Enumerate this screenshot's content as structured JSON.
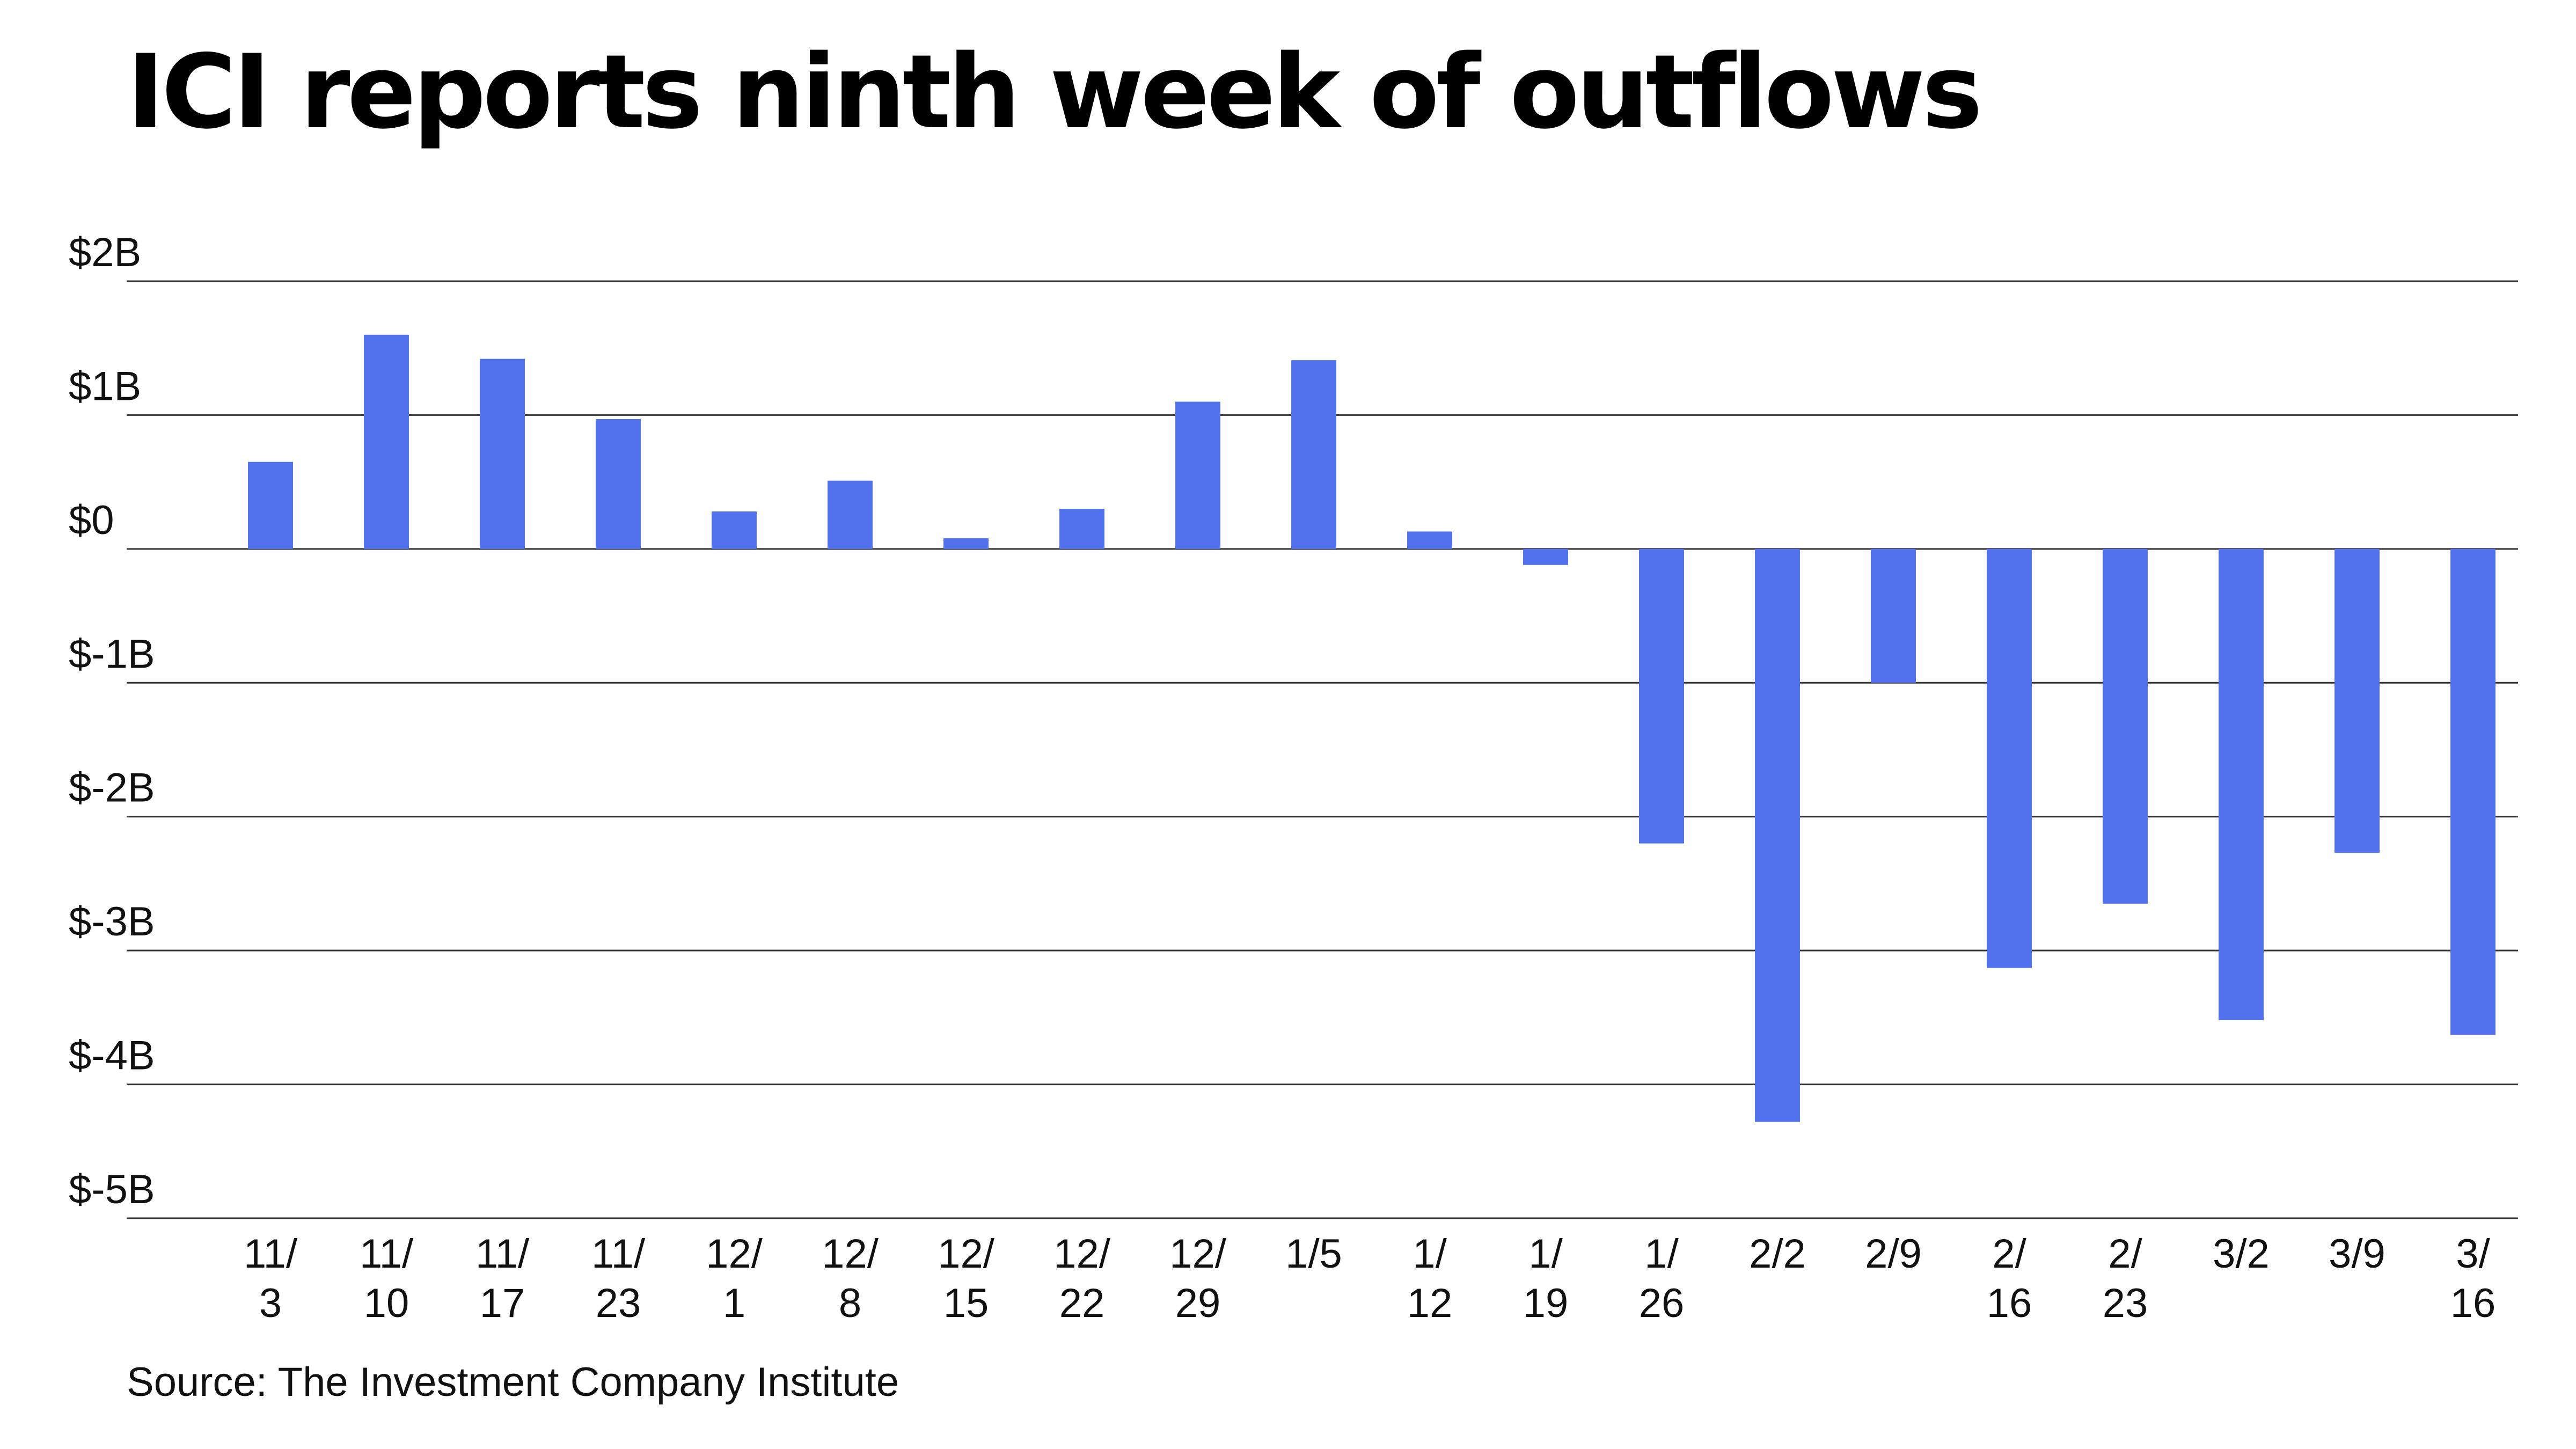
{
  "chart_data": {
    "type": "bar",
    "title": "ICI reports ninth week of outflows",
    "source": "Source: The Investment Company Institute",
    "categories": [
      "11/3",
      "11/10",
      "11/17",
      "11/23",
      "12/1",
      "12/8",
      "12/15",
      "12/22",
      "12/29",
      "1/5",
      "1/12",
      "1/19",
      "1/26",
      "2/2",
      "2/9",
      "2/16",
      "2/23",
      "3/2",
      "3/9",
      "3/16"
    ],
    "tick_labels": [
      [
        "11/",
        "3"
      ],
      [
        "11/",
        "10"
      ],
      [
        "11/",
        "17"
      ],
      [
        "11/",
        "23"
      ],
      [
        "12/",
        "1"
      ],
      [
        "12/",
        "8"
      ],
      [
        "12/",
        "15"
      ],
      [
        "12/",
        "22"
      ],
      [
        "12/",
        "29"
      ],
      [
        "1/5"
      ],
      [
        "1/",
        "12"
      ],
      [
        "1/",
        "19"
      ],
      [
        "1/",
        "26"
      ],
      [
        "2/2"
      ],
      [
        "2/9"
      ],
      [
        "2/",
        "16"
      ],
      [
        "2/",
        "23"
      ],
      [
        "3/2"
      ],
      [
        "3/9"
      ],
      [
        "3/",
        "16"
      ]
    ],
    "values": [
      0.65,
      1.6,
      1.42,
      0.97,
      0.28,
      0.51,
      0.08,
      0.3,
      1.1,
      1.41,
      0.13,
      -0.12,
      -2.2,
      -4.28,
      -1.0,
      -3.13,
      -2.65,
      -3.52,
      -2.27,
      -3.63
    ],
    "ylim": [
      -5,
      2
    ],
    "yticks": [
      2,
      1,
      0,
      -1,
      -2,
      -3,
      -4,
      -5
    ],
    "ytick_labels": [
      "$2B",
      "$1B",
      "$0",
      "$-1B",
      "$-2B",
      "$-3B",
      "$-4B",
      "$-5B"
    ],
    "xlabel": "",
    "ylabel": "",
    "grid": true,
    "bar_color": "#5172ec",
    "grid_color": "#333333"
  }
}
